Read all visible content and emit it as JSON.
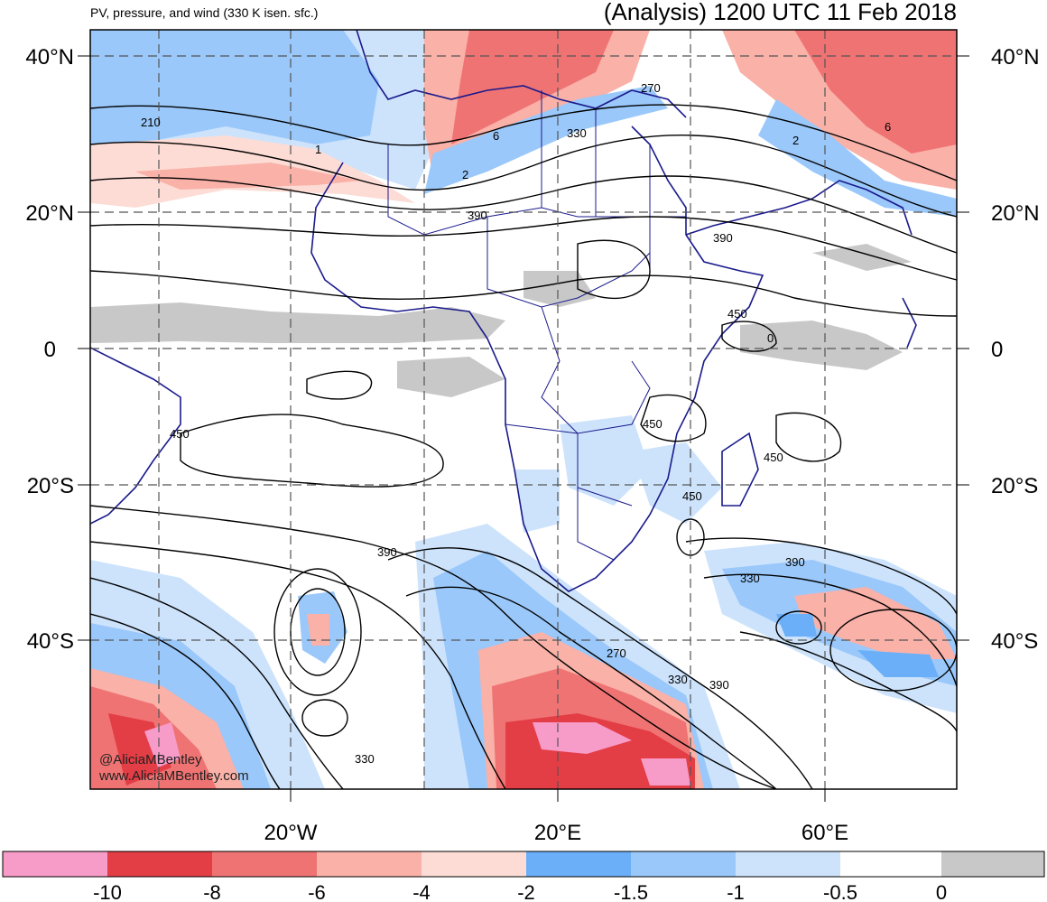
{
  "header": {
    "subtitle": "PV, pressure, and wind (330 K isen. sfc.)",
    "title": "(Analysis) 1200 UTC 11 Feb 2018"
  },
  "axes": {
    "lat_left": [
      "40°N",
      "20°N",
      "0",
      "20°S",
      "40°S"
    ],
    "lat_right": [
      "40°N",
      "20°N",
      "0",
      "20°S",
      "40°S"
    ],
    "lon_bottom": [
      "20°W",
      "20°E",
      "60°E"
    ]
  },
  "contour_labels": [
    "210",
    "1",
    "6",
    "2",
    "390",
    "330",
    "270",
    "2",
    "6",
    "390",
    "450",
    "0",
    "450",
    "450",
    "450",
    "450",
    "390",
    "330",
    "390",
    "270",
    "330",
    "390",
    "330"
  ],
  "watermark": {
    "handle": "@AliciaMBentley",
    "url": "www.AliciaMBentley.com"
  },
  "colorbar": {
    "colors": [
      "#f79bc8",
      "#e33d45",
      "#f07373",
      "#f9b1a8",
      "#fcdcd5",
      "#6aaff7",
      "#9ac8fa",
      "#cde3fc",
      "#ffffff",
      "#c8c8c8"
    ],
    "tick_labels": [
      "-10",
      "-8",
      "-6",
      "-4",
      "-2",
      "-1.5",
      "-1",
      "-0.5",
      "0"
    ]
  },
  "colors": {
    "coastline": "#1a1a8c",
    "contour": "#000000",
    "grid": "#555555"
  }
}
